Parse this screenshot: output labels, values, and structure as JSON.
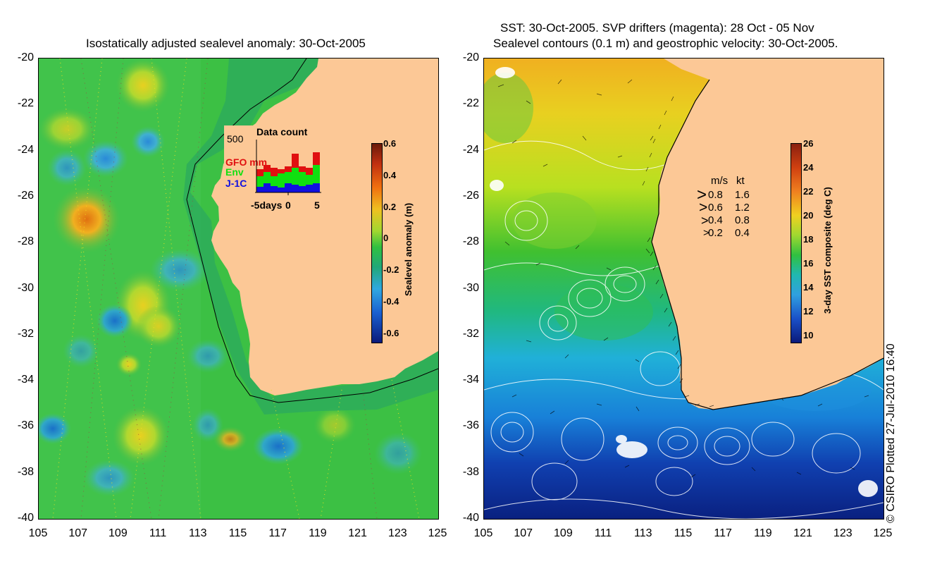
{
  "left": {
    "title": "Isostatically adjusted sealevel anomaly: 30-Oct-2005",
    "y_ticks": [
      "-20",
      "-22",
      "-24",
      "-26",
      "-28",
      "-30",
      "-32",
      "-34",
      "-36",
      "-38",
      "-40"
    ],
    "x_ticks": [
      "105",
      "107",
      "109",
      "111",
      "113",
      "115",
      "117",
      "119",
      "121",
      "123",
      "125"
    ],
    "colorbar": {
      "label": "Sealevel anomaly (m)",
      "ticks": [
        "0.6",
        "0.4",
        "0.2",
        "0",
        "-0.2",
        "-0.4",
        "-0.6"
      ]
    },
    "data_count": {
      "title": "Data count",
      "ymax_label": "500",
      "series": [
        "GFO mm",
        "Env",
        "J-1C"
      ],
      "x_label_left": "-5days",
      "x_label_mid": "0",
      "x_label_right": "5"
    }
  },
  "right": {
    "title_line1": "SST: 30-Oct-2005. SVP drifters (magenta): 28 Oct - 05 Nov",
    "title_line2": "Sealevel contours (0.1 m) and geostrophic velocity: 30-Oct-2005.",
    "y_ticks": [
      "-20",
      "-22",
      "-24",
      "-26",
      "-28",
      "-30",
      "-32",
      "-34",
      "-36",
      "-38",
      "-40"
    ],
    "x_ticks": [
      "105",
      "107",
      "109",
      "111",
      "113",
      "115",
      "117",
      "119",
      "121",
      "123",
      "125"
    ],
    "colorbar": {
      "label": "3-day SST composite (deg C)",
      "ticks": [
        "26",
        "24",
        "22",
        "20",
        "18",
        "16",
        "14",
        "12",
        "10"
      ]
    },
    "velocity_legend": {
      "header_ms": "m/s",
      "header_kt": "kt",
      "rows": [
        {
          "ms": "0.8",
          "kt": "1.6"
        },
        {
          "ms": "0.6",
          "kt": "1.2"
        },
        {
          "ms": "0.4",
          "kt": "0.8"
        },
        {
          "ms": "0.2",
          "kt": "0.4"
        }
      ]
    }
  },
  "copyright": "© CSIRO Plotted 27-Jul-2010 16:40",
  "colors": {
    "land": "#fcc896",
    "ocean_green": "#2fbf4a",
    "sst_cold": "#0a2a8c",
    "sst_warm": "#f0a020"
  }
}
